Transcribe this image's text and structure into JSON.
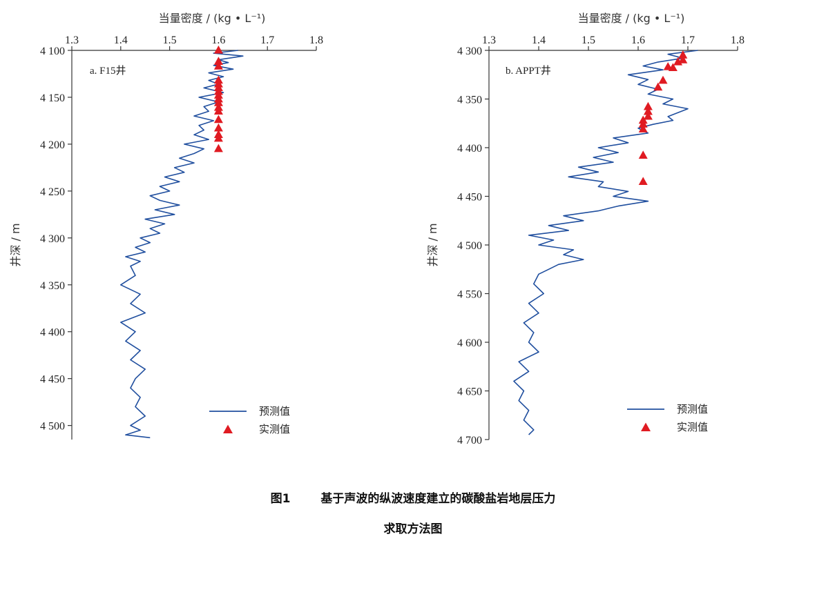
{
  "caption": {
    "figure_number": "图1",
    "title_line1": "基于声波的纵波速度建立的碳酸盐岩地层压力",
    "title_line2": "求取方法图"
  },
  "colors": {
    "predicted": "#1f4e9e",
    "measured": "#e01b22",
    "axis": "#333333"
  },
  "chart_data": [
    {
      "type": "line",
      "panel_label": "a. F15井",
      "xlabel": "当量密度 / (kg • L⁻¹)",
      "ylabel": "井深 / m",
      "xlim": [
        1.3,
        1.8
      ],
      "ylim": [
        4100,
        4515
      ],
      "y_inverted": true,
      "x_ticks": [
        "1.3",
        "1.4",
        "1.5",
        "1.6",
        "1.7",
        "1.8"
      ],
      "y_ticks": [
        "4 100",
        "4 150",
        "4 200",
        "4 250",
        "4 300",
        "4 350",
        "4 400",
        "4 450",
        "4 500"
      ],
      "legend": {
        "predicted": "预测值",
        "measured": "实测值",
        "placement": "bottom-right"
      },
      "series": [
        {
          "name": "预测值",
          "kind": "line",
          "depth": [
            4100,
            4103,
            4106,
            4110,
            4113,
            4116,
            4120,
            4124,
            4128,
            4132,
            4136,
            4140,
            4145,
            4150,
            4155,
            4160,
            4165,
            4170,
            4175,
            4180,
            4185,
            4190,
            4195,
            4200,
            4205,
            4210,
            4215,
            4220,
            4225,
            4230,
            4235,
            4240,
            4245,
            4250,
            4255,
            4260,
            4265,
            4270,
            4275,
            4280,
            4285,
            4290,
            4295,
            4300,
            4305,
            4310,
            4315,
            4320,
            4325,
            4330,
            4340,
            4350,
            4360,
            4370,
            4380,
            4390,
            4400,
            4410,
            4420,
            4430,
            4440,
            4450,
            4460,
            4470,
            4480,
            4490,
            4500,
            4505,
            4510,
            4513
          ],
          "density": [
            1.64,
            1.59,
            1.65,
            1.6,
            1.62,
            1.59,
            1.63,
            1.58,
            1.61,
            1.58,
            1.6,
            1.57,
            1.61,
            1.56,
            1.6,
            1.57,
            1.58,
            1.55,
            1.59,
            1.56,
            1.57,
            1.55,
            1.58,
            1.53,
            1.57,
            1.55,
            1.52,
            1.55,
            1.51,
            1.53,
            1.49,
            1.52,
            1.48,
            1.5,
            1.46,
            1.48,
            1.52,
            1.47,
            1.51,
            1.45,
            1.49,
            1.46,
            1.48,
            1.44,
            1.46,
            1.43,
            1.45,
            1.41,
            1.44,
            1.42,
            1.43,
            1.4,
            1.44,
            1.42,
            1.45,
            1.4,
            1.43,
            1.41,
            1.44,
            1.42,
            1.45,
            1.43,
            1.42,
            1.44,
            1.43,
            1.45,
            1.42,
            1.44,
            1.41,
            1.46
          ]
        },
        {
          "name": "实测值",
          "kind": "marker",
          "depth": [
            4100,
            4112,
            4117,
            4132,
            4136,
            4140,
            4144,
            4148,
            4152,
            4156,
            4161,
            4165,
            4174,
            4183,
            4190,
            4194,
            4205
          ],
          "density": [
            1.6,
            1.6,
            1.6,
            1.6,
            1.6,
            1.6,
            1.6,
            1.6,
            1.6,
            1.6,
            1.6,
            1.6,
            1.6,
            1.6,
            1.6,
            1.6,
            1.6
          ]
        }
      ]
    },
    {
      "type": "line",
      "panel_label": "b. APPT井",
      "xlabel": "当量密度 / (kg • L⁻¹)",
      "ylabel": "井深 / m",
      "xlim": [
        1.3,
        1.8
      ],
      "ylim": [
        4300,
        4700
      ],
      "y_inverted": true,
      "x_ticks": [
        "1.3",
        "1.4",
        "1.5",
        "1.6",
        "1.7",
        "1.8"
      ],
      "y_ticks": [
        "4 300",
        "4 350",
        "4 400",
        "4 450",
        "4 500",
        "4 550",
        "4 600",
        "4 650",
        "4 700"
      ],
      "legend": {
        "predicted": "预测值",
        "measured": "实测值",
        "placement": "bottom-right"
      },
      "series": [
        {
          "name": "预测值",
          "kind": "line",
          "depth": [
            4300,
            4304,
            4308,
            4312,
            4316,
            4320,
            4325,
            4330,
            4335,
            4340,
            4345,
            4350,
            4355,
            4360,
            4364,
            4368,
            4372,
            4376,
            4380,
            4385,
            4390,
            4395,
            4400,
            4405,
            4410,
            4415,
            4420,
            4425,
            4430,
            4435,
            4440,
            4445,
            4450,
            4455,
            4460,
            4465,
            4470,
            4475,
            4480,
            4485,
            4490,
            4495,
            4500,
            4505,
            4510,
            4515,
            4520,
            4525,
            4530,
            4540,
            4550,
            4560,
            4570,
            4580,
            4590,
            4600,
            4610,
            4620,
            4630,
            4640,
            4650,
            4660,
            4670,
            4680,
            4690,
            4695
          ],
          "density": [
            1.72,
            1.66,
            1.69,
            1.64,
            1.61,
            1.65,
            1.58,
            1.62,
            1.6,
            1.64,
            1.62,
            1.67,
            1.65,
            1.7,
            1.68,
            1.66,
            1.67,
            1.63,
            1.6,
            1.62,
            1.55,
            1.58,
            1.52,
            1.56,
            1.51,
            1.55,
            1.48,
            1.52,
            1.46,
            1.53,
            1.52,
            1.58,
            1.55,
            1.62,
            1.56,
            1.52,
            1.45,
            1.49,
            1.42,
            1.46,
            1.38,
            1.43,
            1.4,
            1.47,
            1.45,
            1.49,
            1.44,
            1.42,
            1.4,
            1.39,
            1.41,
            1.38,
            1.4,
            1.37,
            1.39,
            1.38,
            1.4,
            1.36,
            1.38,
            1.35,
            1.37,
            1.36,
            1.38,
            1.37,
            1.39,
            1.38
          ]
        },
        {
          "name": "实测值",
          "kind": "marker",
          "depth": [
            4305,
            4310,
            4312,
            4317,
            4318,
            4331,
            4338,
            4358,
            4363,
            4368,
            4372,
            4376,
            4381,
            4408,
            4435
          ],
          "density": [
            1.69,
            1.69,
            1.68,
            1.66,
            1.67,
            1.65,
            1.64,
            1.62,
            1.62,
            1.62,
            1.61,
            1.61,
            1.61,
            1.61,
            1.61
          ]
        }
      ]
    }
  ]
}
